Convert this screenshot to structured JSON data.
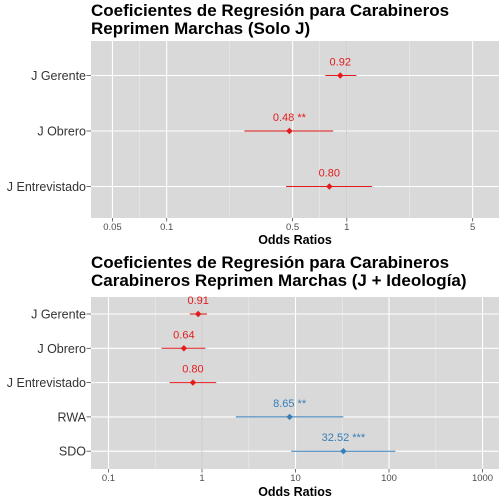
{
  "chart_data": [
    {
      "type": "forest",
      "title_lines": [
        "Coeficientes de Regresión para Carabineros",
        "Reprimen Marchas (Solo J)"
      ],
      "xlabel": "Odds Ratios",
      "x_scale": "log",
      "xlim": [
        0.038,
        7
      ],
      "x_ticks": [
        {
          "value": 0.05,
          "label": "0.05"
        },
        {
          "value": 0.1,
          "label": "0.1"
        },
        {
          "value": 0.5,
          "label": "0.5"
        },
        {
          "value": 1,
          "label": "1"
        },
        {
          "value": 5,
          "label": "5"
        }
      ],
      "minor_grid": [
        0.0707,
        0.2236,
        0.7071,
        2.236
      ],
      "reference_line": 1,
      "grid": true,
      "terms": [
        {
          "name": "J Gerente",
          "estimate": 0.92,
          "lower": 0.76,
          "upper": 1.13,
          "label": "0.92",
          "color": "#e41a1c"
        },
        {
          "name": "J Obrero",
          "estimate": 0.48,
          "lower": 0.27,
          "upper": 0.84,
          "label": "0.48 **",
          "color": "#e41a1c"
        },
        {
          "name": "J Entrevistado",
          "estimate": 0.8,
          "lower": 0.46,
          "upper": 1.38,
          "label": "0.80",
          "color": "#e41a1c"
        }
      ]
    },
    {
      "type": "forest",
      "title_lines": [
        "Coeficientes de Regresión para Carabineros",
        "Carabineros Reprimen Marchas (J + Ideología)"
      ],
      "xlabel": "Odds Ratios",
      "x_scale": "log",
      "xlim": [
        0.065,
        1500
      ],
      "x_ticks": [
        {
          "value": 0.1,
          "label": "0.1"
        },
        {
          "value": 1,
          "label": "1"
        },
        {
          "value": 10,
          "label": "10"
        },
        {
          "value": 100,
          "label": "100"
        },
        {
          "value": 1000,
          "label": "1000"
        }
      ],
      "minor_grid": [
        0.3162,
        3.162,
        31.62,
        316.2
      ],
      "reference_line": 1,
      "grid": true,
      "terms": [
        {
          "name": "J Gerente",
          "estimate": 0.91,
          "lower": 0.74,
          "upper": 1.13,
          "label": "0.91",
          "color": "#e41a1c"
        },
        {
          "name": "J Obrero",
          "estimate": 0.64,
          "lower": 0.37,
          "upper": 1.09,
          "label": "0.64",
          "color": "#e41a1c"
        },
        {
          "name": "J Entrevistado",
          "estimate": 0.8,
          "lower": 0.45,
          "upper": 1.42,
          "label": "0.80",
          "color": "#e41a1c"
        },
        {
          "name": "RWA",
          "estimate": 8.65,
          "lower": 2.3,
          "upper": 32.5,
          "label": "8.65 **",
          "color": "#377eb8"
        },
        {
          "name": "SDO",
          "estimate": 32.52,
          "lower": 9.0,
          "upper": 117.0,
          "label": "32.52 ***",
          "color": "#377eb8"
        }
      ]
    }
  ]
}
